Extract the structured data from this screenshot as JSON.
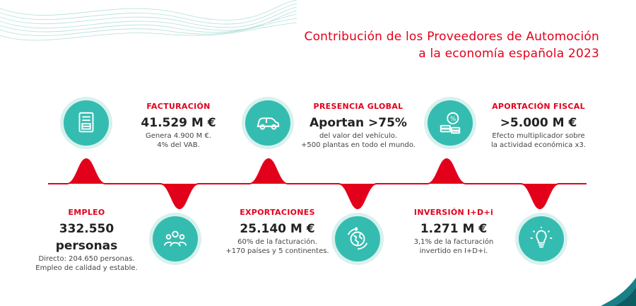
{
  "title": {
    "line1": "Contribución de los Proveedores de Automoción",
    "line2": "a la economía española 2023"
  },
  "top_items": [
    {
      "icon": "invoice-icon",
      "label": "FACTURACIÓN",
      "value": "41.529 M €",
      "desc1": "Genera 4.900 M €.",
      "desc2": "4% del VAB."
    },
    {
      "icon": "car-icon",
      "label": "PRESENCIA GLOBAL",
      "value": "Aportan >75%",
      "desc1": "del valor del vehículo.",
      "desc2": "+500 plantas en todo el mundo."
    },
    {
      "icon": "coins-percent-icon",
      "label": "APORTACIÓN FISCAL",
      "value": ">5.000 M €",
      "desc1": "Efecto multiplicador sobre",
      "desc2": "la actividad económica x3."
    }
  ],
  "bottom_items": [
    {
      "icon": "people-icon",
      "label": "EMPLEO",
      "value": "332.550 personas",
      "desc1": "Directo: 204.650 personas.",
      "desc2": "Empleo de calidad y estable."
    },
    {
      "icon": "globe-icon",
      "label": "EXPORTACIONES",
      "value": "25.140 M €",
      "desc1": "60% de la facturación.",
      "desc2": "+170 países y 5 continentes."
    },
    {
      "icon": "lightbulb-icon",
      "label": "INVERSIÓN I+D+i",
      "value": "1.271 M €",
      "desc1": "3,1% de la facturación",
      "desc2": "invertido en I+D+i."
    }
  ],
  "colors": {
    "accent": "#e3001b",
    "teal": "#35bcb0",
    "teal_light": "#d8f1ee"
  }
}
